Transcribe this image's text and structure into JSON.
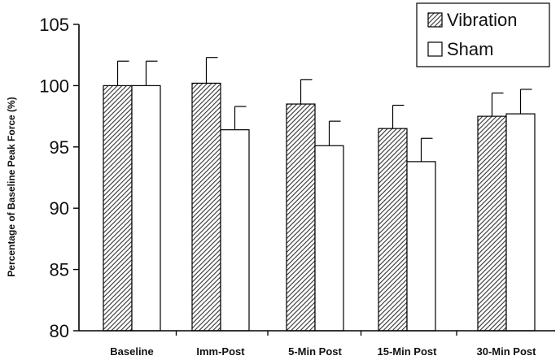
{
  "chart_data": {
    "type": "bar",
    "ylabel": "Percentage of Baseline Peak Force (%)",
    "xlabel": "",
    "ylim": [
      80,
      105
    ],
    "yticks": [
      80,
      85,
      90,
      95,
      100,
      105
    ],
    "categories": [
      "Baseline",
      "Imm-Post",
      "5-Min Post",
      "15-Min Post",
      "30-Min Post"
    ],
    "series": [
      {
        "name": "Vibration",
        "pattern": "diagonal-hatch",
        "values": [
          100.0,
          100.2,
          98.5,
          96.5,
          97.5
        ],
        "error": [
          2.0,
          2.1,
          2.0,
          1.9,
          1.9
        ]
      },
      {
        "name": "Sham",
        "pattern": "solid-white",
        "values": [
          100.0,
          96.4,
          95.1,
          93.8,
          97.7
        ],
        "error": [
          2.0,
          1.9,
          2.0,
          1.9,
          2.0
        ]
      }
    ],
    "legend_position": "top-right",
    "grid": false,
    "colors": {
      "axis": "#000000",
      "bar_fill": "#ffffff",
      "hatch": "#333333"
    }
  }
}
